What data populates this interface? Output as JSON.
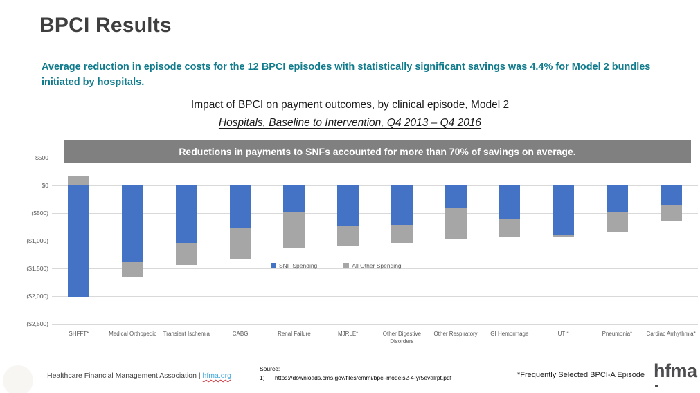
{
  "slide": {
    "title": "BPCI Results",
    "key_message": "Average reduction in episode costs for the 12 BPCI episodes with statistically significant savings was 4.4% for Model 2 bundles initiated by hospitals.",
    "banner_text": "Reductions in payments to SNFs accounted for more than 70% of savings on average."
  },
  "chart_data": {
    "type": "bar",
    "stacked": true,
    "title": "Impact of BPCI on payment outcomes, by clinical episode, Model 2",
    "subtitle": "Hospitals, Baseline to Intervention, Q4 2013 – Q4 2016",
    "unit": "USD change per episode",
    "categories": [
      "SHFFT*",
      "Medical Orthopedic",
      "Transient Ischemia",
      "CABG",
      "Renal Failure",
      "MJRLE*",
      "Other Digestive Disorders",
      "Other Respiratory",
      "GI Hemorrhage",
      "UTI*",
      "Pneumonia*",
      "Cardiac Arrhythmia*"
    ],
    "series": [
      {
        "name": "SNF Spending",
        "color": "#4472C4",
        "values": [
          -2010,
          -1375,
          -1040,
          -775,
          -475,
          -725,
          -715,
          -415,
          -600,
          -885,
          -470,
          -360
        ]
      },
      {
        "name": "All Other Spending",
        "color": "#A6A6A6",
        "values": [
          180,
          -275,
          -400,
          -550,
          -650,
          -365,
          -320,
          -565,
          -330,
          -55,
          -365,
          -295
        ]
      }
    ],
    "ylim": [
      -2500,
      500
    ],
    "y_ticks": [
      {
        "label": "$500",
        "value": 500
      },
      {
        "label": "$0",
        "value": 0
      },
      {
        "label": "($500)",
        "value": -500
      },
      {
        "label": "($1,000)",
        "value": -1000
      },
      {
        "label": "($1,500)",
        "value": -1500
      },
      {
        "label": "($2,000)",
        "value": -2000
      },
      {
        "label": "($2,500)",
        "value": -2500
      }
    ],
    "grid": true,
    "legend_position": "center"
  },
  "footer": {
    "org_text": "Healthcare Financial Management Association | ",
    "org_link": "hfma.org",
    "source_label": "Source:",
    "source_number": "1)",
    "source_url": "https://downloads.cms.gov/files/cmmi/bpci-models2-4-yr5evalrpt.pdf",
    "episode_note": "*Frequently Selected BPCI-A Episode",
    "logo_text": "hfma"
  },
  "colors": {
    "accent_teal": "#0F7B8C",
    "title_gray": "#3F3F3F",
    "banner_gray": "#808080",
    "snf_blue": "#4472C4",
    "other_gray": "#A6A6A6",
    "gridline": "#D9D9D9",
    "axis_text": "#595959",
    "link_blue": "#41A8DC"
  }
}
